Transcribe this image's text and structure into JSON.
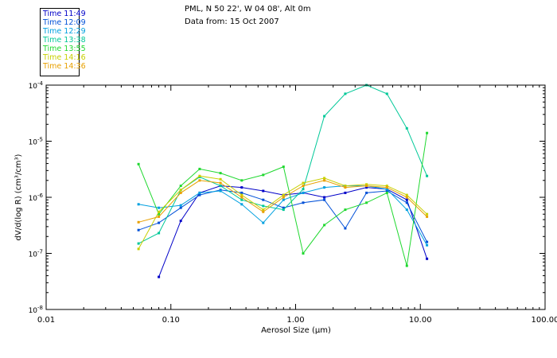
{
  "header": {
    "location": "PML, N 50 22', W 04 08', Alt 0m",
    "date_line": "Data from: 15 Oct 2007"
  },
  "chart_data": {
    "type": "line",
    "xlabel": "Aerosol Size (µm)",
    "ylabel": "dV/d(log R) (cm³/cm³)",
    "x_scale": "log",
    "y_scale": "log",
    "xlim": [
      0.01,
      100
    ],
    "ylim": [
      1e-08,
      0.0001
    ],
    "x_ticks": [
      {
        "value": 0.01,
        "label": "0.01"
      },
      {
        "value": 0.1,
        "label": "0.10"
      },
      {
        "value": 1,
        "label": "1.00"
      },
      {
        "value": 10,
        "label": "10.00"
      },
      {
        "value": 100,
        "label": "100.00"
      }
    ],
    "y_ticks": [
      {
        "value": 1e-08,
        "mant": "10",
        "exp": "-8"
      },
      {
        "value": 1e-07,
        "mant": "10",
        "exp": "-7"
      },
      {
        "value": 1e-06,
        "mant": "10",
        "exp": "-6"
      },
      {
        "value": 1e-05,
        "mant": "10",
        "exp": "-5"
      },
      {
        "value": 0.0001,
        "mant": "10",
        "exp": "-4"
      }
    ],
    "x": [
      0.055,
      0.08,
      0.12,
      0.17,
      0.25,
      0.37,
      0.55,
      0.8,
      1.15,
      1.7,
      2.5,
      3.7,
      5.4,
      7.8,
      11.3
    ],
    "legend_position": "top-left",
    "series": [
      {
        "name": "Time 11:49",
        "color": "#0000c8",
        "values": [
          null,
          3.8e-08,
          3.8e-07,
          1.2e-06,
          1.6e-06,
          1.5e-06,
          1.3e-06,
          1.1e-06,
          1.2e-06,
          1e-06,
          1.2e-06,
          1.5e-06,
          1.4e-06,
          9e-07,
          8e-08
        ]
      },
      {
        "name": "Time 12:09",
        "color": "#0050d8",
        "values": [
          2.6e-07,
          3.5e-07,
          6.5e-07,
          1.1e-06,
          1.35e-06,
          1.2e-06,
          9e-07,
          6.5e-07,
          8e-07,
          9e-07,
          2.8e-07,
          1.2e-06,
          1.3e-06,
          8e-07,
          1.6e-07
        ]
      },
      {
        "name": "Time 12:29",
        "color": "#00a0e0",
        "values": [
          7.5e-07,
          6.5e-07,
          7.2e-07,
          1.2e-06,
          1.3e-06,
          7.5e-07,
          3.5e-07,
          9e-07,
          1.2e-06,
          1.5e-06,
          1.6e-06,
          1.6e-06,
          1.4e-06,
          6e-07,
          1.4e-07
        ]
      },
      {
        "name": "Time 13:38",
        "color": "#00c898",
        "values": [
          1.5e-07,
          2.3e-07,
          1.35e-06,
          2.3e-06,
          1.6e-06,
          9e-07,
          7e-07,
          6e-07,
          1.4e-06,
          2.8e-05,
          7e-05,
          0.0001,
          7e-05,
          1.7e-05,
          2.4e-06
        ]
      },
      {
        "name": "Time 13:55",
        "color": "#20d830",
        "values": [
          3.9e-06,
          5e-07,
          1.6e-06,
          3.2e-06,
          2.7e-06,
          2e-06,
          2.5e-06,
          3.5e-06,
          1e-07,
          3.2e-07,
          6e-07,
          8e-07,
          1.2e-06,
          6e-08,
          1.4e-05
        ]
      },
      {
        "name": "Time 14:16",
        "color": "#c8d000",
        "values": [
          1.2e-07,
          5.5e-07,
          1.35e-06,
          2.4e-06,
          2.1e-06,
          1.1e-06,
          6e-07,
          1.1e-06,
          1.8e-06,
          2.2e-06,
          1.6e-06,
          1.7e-06,
          1.6e-06,
          1.1e-06,
          5e-07
        ]
      },
      {
        "name": "Time 14:36",
        "color": "#e8a000",
        "values": [
          3.6e-07,
          4.5e-07,
          1.2e-06,
          2e-06,
          1.8e-06,
          1e-06,
          5.5e-07,
          1e-06,
          1.6e-06,
          2e-06,
          1.5e-06,
          1.6e-06,
          1.5e-06,
          1e-06,
          4.5e-07
        ]
      }
    ]
  }
}
